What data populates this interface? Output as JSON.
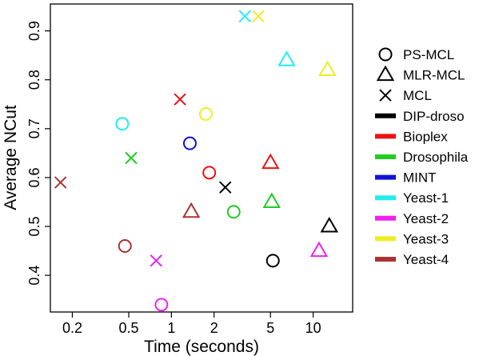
{
  "chart_data": {
    "type": "scatter",
    "title": "",
    "xlabel": "Time (seconds)",
    "ylabel": "Average NCut",
    "x_scale": "log",
    "xlim": [
      0.14,
      19
    ],
    "ylim": [
      0.325,
      0.955
    ],
    "x_ticks": [
      {
        "value": 0.2,
        "label": "0.2"
      },
      {
        "value": 0.5,
        "label": "0.5"
      },
      {
        "value": 1,
        "label": "1"
      },
      {
        "value": 2,
        "label": "2"
      },
      {
        "value": 5,
        "label": "5"
      },
      {
        "value": 10,
        "label": "10"
      }
    ],
    "y_ticks": [
      {
        "value": 0.4,
        "label": "0.4"
      },
      {
        "value": 0.5,
        "label": "0.5"
      },
      {
        "value": 0.6,
        "label": "0.6"
      },
      {
        "value": 0.7,
        "label": "0.7"
      },
      {
        "value": 0.8,
        "label": "0.8"
      },
      {
        "value": 0.9,
        "label": "0.9"
      }
    ],
    "grid": false,
    "legend_position": "right",
    "methods": [
      {
        "name": "PS-MCL",
        "marker": "circle"
      },
      {
        "name": "MLR-MCL",
        "marker": "triangle"
      },
      {
        "name": "MCL",
        "marker": "x"
      }
    ],
    "datasets": [
      {
        "name": "DIP-droso",
        "color": "#000000"
      },
      {
        "name": "Bioplex",
        "color": "#ee1111"
      },
      {
        "name": "Drosophila",
        "color": "#22cc22"
      },
      {
        "name": "MINT",
        "color": "#1111dd"
      },
      {
        "name": "Yeast-1",
        "color": "#22eeee"
      },
      {
        "name": "Yeast-2",
        "color": "#ee22ee"
      },
      {
        "name": "Yeast-3",
        "color": "#eeee22"
      },
      {
        "name": "Yeast-4",
        "color": "#aa3333"
      }
    ],
    "points": [
      {
        "dataset": "DIP-droso",
        "method": "PS-MCL",
        "x": 5.2,
        "y": 0.43
      },
      {
        "dataset": "DIP-droso",
        "method": "MLR-MCL",
        "x": 13.0,
        "y": 0.5
      },
      {
        "dataset": "DIP-droso",
        "method": "MCL",
        "x": 2.4,
        "y": 0.58
      },
      {
        "dataset": "Bioplex",
        "method": "PS-MCL",
        "x": 1.85,
        "y": 0.61
      },
      {
        "dataset": "Bioplex",
        "method": "MLR-MCL",
        "x": 5.0,
        "y": 0.63
      },
      {
        "dataset": "Bioplex",
        "method": "MCL",
        "x": 1.15,
        "y": 0.76
      },
      {
        "dataset": "Drosophila",
        "method": "PS-MCL",
        "x": 2.75,
        "y": 0.53
      },
      {
        "dataset": "Drosophila",
        "method": "MLR-MCL",
        "x": 5.1,
        "y": 0.55
      },
      {
        "dataset": "Drosophila",
        "method": "MCL",
        "x": 0.52,
        "y": 0.64
      },
      {
        "dataset": "MINT",
        "method": "PS-MCL",
        "x": 1.35,
        "y": 0.67
      },
      {
        "dataset": "Yeast-1",
        "method": "PS-MCL",
        "x": 0.45,
        "y": 0.71
      },
      {
        "dataset": "Yeast-1",
        "method": "MLR-MCL",
        "x": 6.5,
        "y": 0.84
      },
      {
        "dataset": "Yeast-1",
        "method": "MCL",
        "x": 3.3,
        "y": 0.93
      },
      {
        "dataset": "Yeast-2",
        "method": "PS-MCL",
        "x": 0.85,
        "y": 0.34
      },
      {
        "dataset": "Yeast-2",
        "method": "MLR-MCL",
        "x": 11.0,
        "y": 0.45
      },
      {
        "dataset": "Yeast-2",
        "method": "MCL",
        "x": 0.78,
        "y": 0.43
      },
      {
        "dataset": "Yeast-3",
        "method": "PS-MCL",
        "x": 1.75,
        "y": 0.73
      },
      {
        "dataset": "Yeast-3",
        "method": "MLR-MCL",
        "x": 12.6,
        "y": 0.82
      },
      {
        "dataset": "Yeast-3",
        "method": "MCL",
        "x": 4.1,
        "y": 0.93
      },
      {
        "dataset": "Yeast-4",
        "method": "PS-MCL",
        "x": 0.47,
        "y": 0.46
      },
      {
        "dataset": "Yeast-4",
        "method": "MLR-MCL",
        "x": 1.38,
        "y": 0.53
      },
      {
        "dataset": "Yeast-4",
        "method": "MCL",
        "x": 0.165,
        "y": 0.59
      }
    ]
  }
}
